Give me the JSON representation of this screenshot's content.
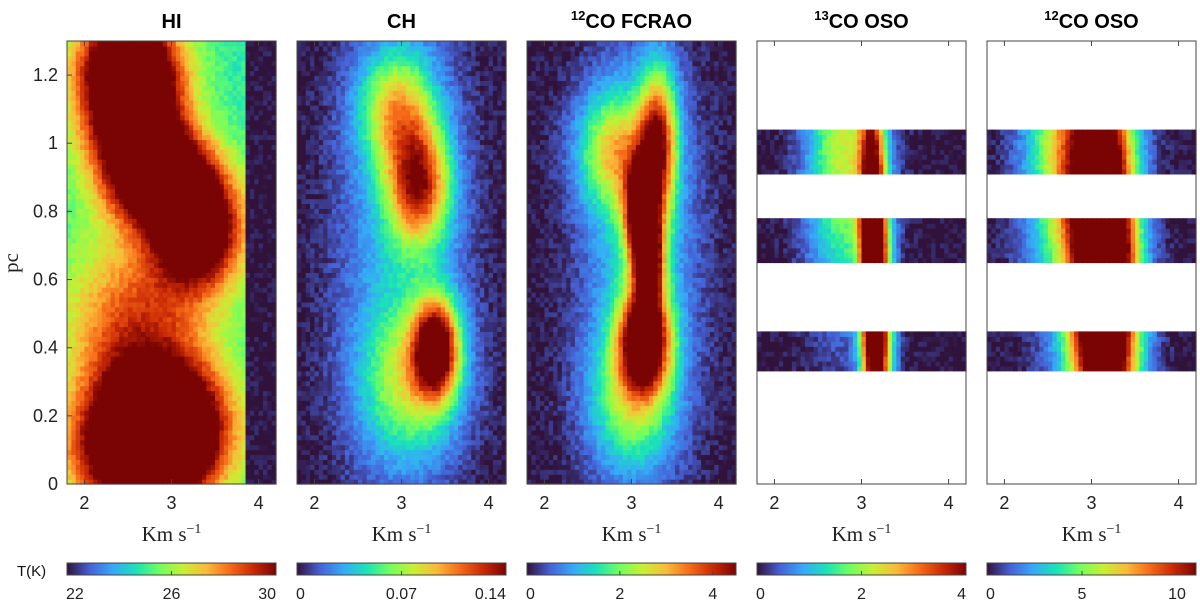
{
  "colors": {
    "colormap": [
      "#30123b",
      "#4662d7",
      "#36aaf9",
      "#1ae4b6",
      "#72fe5e",
      "#c8ef34",
      "#faba39",
      "#f66b19",
      "#ca2a04",
      "#7a0403"
    ],
    "background": "#ffffff"
  },
  "chart_data": [
    {
      "type": "heatmap",
      "title": "HI",
      "title_sup": "",
      "xlabel": "Km s",
      "xlabel_sup": "−1",
      "ylabel": "pc",
      "xlim": [
        1.8,
        4.2
      ],
      "ylim": [
        0,
        1.3
      ],
      "xticks": [
        "2",
        "3",
        "4"
      ],
      "yticks": [
        "0",
        "0.2",
        "0.4",
        "0.6",
        "0.8",
        "1",
        "1.2"
      ],
      "colorbar": {
        "label": "T(K)",
        "min": 22,
        "max": 30,
        "ticks": [
          "22",
          "26",
          "30"
        ]
      },
      "bands": [
        [
          0,
          1.3
        ]
      ],
      "features": [
        {
          "x": 2.7,
          "y": 0.08,
          "sx": 0.55,
          "sy": 0.12,
          "a": 1.0
        },
        {
          "x": 2.9,
          "y": 0.2,
          "sx": 0.5,
          "sy": 0.12,
          "a": 0.8
        },
        {
          "x": 3.3,
          "y": 0.75,
          "sx": 0.35,
          "sy": 0.12,
          "a": 0.95
        },
        {
          "x": 2.85,
          "y": 0.9,
          "sx": 0.4,
          "sy": 0.1,
          "a": 0.95
        },
        {
          "x": 2.55,
          "y": 1.08,
          "sx": 0.4,
          "sy": 0.12,
          "a": 0.95
        },
        {
          "x": 2.5,
          "y": 1.25,
          "sx": 0.4,
          "sy": 0.1,
          "a": 0.85
        },
        {
          "x": 2.6,
          "y": 0.45,
          "sx": 0.6,
          "sy": 0.2,
          "a": 0.5
        }
      ],
      "base": 0.35,
      "cutoff_x": 3.85
    },
    {
      "type": "heatmap",
      "title": "CH",
      "title_sup": "",
      "xlabel": "Km s",
      "xlabel_sup": "−1",
      "ylabel": "",
      "xlim": [
        1.8,
        4.2
      ],
      "ylim": [
        0,
        1.3
      ],
      "xticks": [
        "2",
        "3",
        "4"
      ],
      "yticks": [],
      "colorbar": {
        "label": "",
        "min": 0,
        "max": 0.14,
        "ticks": [
          "0",
          "0.07",
          "0.14"
        ]
      },
      "bands": [
        [
          0,
          1.3
        ]
      ],
      "features": [
        {
          "x": 3.4,
          "y": 0.4,
          "sx": 0.18,
          "sy": 0.1,
          "a": 1.0
        },
        {
          "x": 3.2,
          "y": 0.88,
          "sx": 0.25,
          "sy": 0.12,
          "a": 0.75
        },
        {
          "x": 2.95,
          "y": 1.1,
          "sx": 0.3,
          "sy": 0.12,
          "a": 0.5
        },
        {
          "x": 3.1,
          "y": 0.3,
          "sx": 0.4,
          "sy": 0.15,
          "a": 0.4
        },
        {
          "x": 3.0,
          "y": 0.7,
          "sx": 0.5,
          "sy": 0.5,
          "a": 0.25
        }
      ],
      "base": 0.0,
      "cutoff_x": 99
    },
    {
      "type": "heatmap",
      "title": "CO FCRAO",
      "title_sup": "12",
      "xlabel": "Km s",
      "xlabel_sup": "−1",
      "ylabel": "",
      "xlim": [
        1.8,
        4.2
      ],
      "ylim": [
        0,
        1.3
      ],
      "xticks": [
        "2",
        "3",
        "4"
      ],
      "yticks": [],
      "colorbar": {
        "label": "",
        "min": 0,
        "max": 4.5,
        "ticks": [
          "0",
          "2",
          "4"
        ]
      },
      "bands": [
        [
          0,
          1.3
        ]
      ],
      "features": [
        {
          "x": 3.15,
          "y": 0.42,
          "sx": 0.2,
          "sy": 0.1,
          "a": 1.05
        },
        {
          "x": 3.2,
          "y": 0.65,
          "sx": 0.12,
          "sy": 0.1,
          "a": 0.9
        },
        {
          "x": 3.1,
          "y": 0.8,
          "sx": 0.13,
          "sy": 0.1,
          "a": 0.85
        },
        {
          "x": 3.3,
          "y": 1.0,
          "sx": 0.15,
          "sy": 0.15,
          "a": 0.8
        },
        {
          "x": 2.8,
          "y": 0.98,
          "sx": 0.3,
          "sy": 0.12,
          "a": 0.5
        },
        {
          "x": 3.0,
          "y": 0.25,
          "sx": 0.35,
          "sy": 0.15,
          "a": 0.4
        },
        {
          "x": 3.1,
          "y": 0.7,
          "sx": 0.45,
          "sy": 0.4,
          "a": 0.3
        }
      ],
      "base": 0.0,
      "cutoff_x": 99
    },
    {
      "type": "heatmap",
      "title": "CO OSO",
      "title_sup": "13",
      "xlabel": "Km s",
      "xlabel_sup": "−1",
      "ylabel": "",
      "xlim": [
        1.8,
        4.2
      ],
      "ylim": [
        0,
        1.3
      ],
      "xticks": [
        "2",
        "3",
        "4"
      ],
      "yticks": [],
      "colorbar": {
        "label": "",
        "min": 0,
        "max": 4,
        "ticks": [
          "0",
          "2",
          "4"
        ]
      },
      "bands": [
        [
          0.33,
          0.45
        ],
        [
          0.655,
          0.78
        ],
        [
          0.91,
          1.035
        ]
      ],
      "features": [
        {
          "x": 3.2,
          "y": 0.39,
          "sx": 0.12,
          "sy": 0.3,
          "a": 0.8
        },
        {
          "x": 3.12,
          "y": 0.72,
          "sx": 0.1,
          "sy": 0.3,
          "a": 1.05
        },
        {
          "x": 2.8,
          "y": 0.97,
          "sx": 0.3,
          "sy": 0.3,
          "a": 0.55
        }
      ],
      "base": 0.0,
      "cutoff_x": 99
    },
    {
      "type": "heatmap",
      "title": "CO OSO",
      "title_sup": "12",
      "xlabel": "Km s",
      "xlabel_sup": "−1",
      "ylabel": "",
      "xlim": [
        1.8,
        4.2
      ],
      "ylim": [
        0,
        1.3
      ],
      "xticks": [
        "2",
        "3",
        "4"
      ],
      "yticks": [],
      "colorbar": {
        "label": "",
        "min": 0,
        "max": 11,
        "ticks": [
          "0",
          "5",
          "10"
        ]
      },
      "bands": [
        [
          0.33,
          0.45
        ],
        [
          0.655,
          0.78
        ],
        [
          0.91,
          1.035
        ]
      ],
      "features": [
        {
          "x": 3.15,
          "y": 0.39,
          "sx": 0.28,
          "sy": 0.3,
          "a": 0.95
        },
        {
          "x": 3.15,
          "y": 0.72,
          "sx": 0.22,
          "sy": 0.3,
          "a": 1.0
        },
        {
          "x": 2.85,
          "y": 0.97,
          "sx": 0.38,
          "sy": 0.3,
          "a": 0.8
        }
      ],
      "base": 0.0,
      "cutoff_x": 99
    }
  ]
}
